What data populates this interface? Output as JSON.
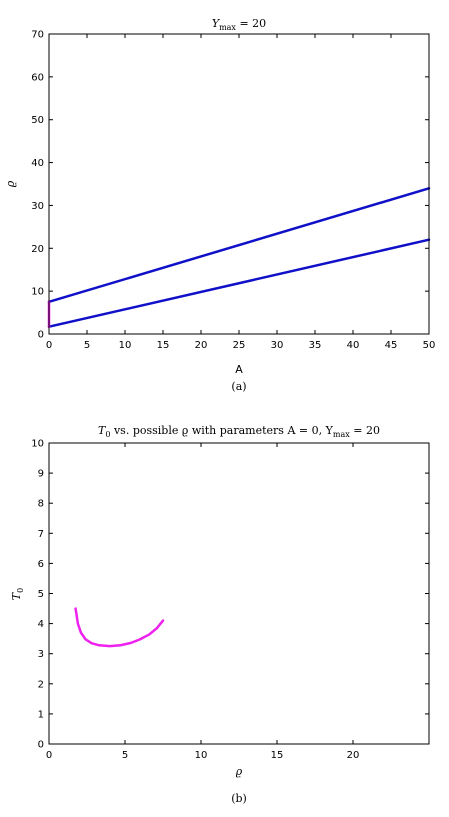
{
  "chart_data": [
    {
      "type": "line",
      "caption": "(a)",
      "title": {
        "main": "Y",
        "sub": "max",
        "rest": " = 20"
      },
      "xlabel": "A",
      "ylabel": "ϱ",
      "xlim": [
        0,
        50
      ],
      "ylim": [
        0,
        70
      ],
      "xticks": [
        0,
        5,
        10,
        15,
        20,
        25,
        30,
        35,
        40,
        45,
        50
      ],
      "yticks": [
        0,
        10,
        20,
        30,
        40,
        50,
        60,
        70
      ],
      "grid": false,
      "series": [
        {
          "color": "#1010c8",
          "x": [
            0,
            50
          ],
          "y": [
            7.5,
            34
          ]
        },
        {
          "color": "#1010c8",
          "x": [
            0,
            50
          ],
          "y": [
            1.7,
            22
          ]
        },
        {
          "color": "#ee22ee",
          "x": [
            0,
            0
          ],
          "y": [
            1.7,
            7.5
          ]
        }
      ]
    },
    {
      "type": "line",
      "caption": "(b)",
      "title": {
        "p1": "T",
        "s1": "0",
        "p2": " vs. possible ϱ with parameters A = 0,  Y",
        "s2": "max",
        "p3": " = 20"
      },
      "xlabel": "ϱ",
      "ylabel": {
        "main": "T",
        "sub": "0"
      },
      "xlim": [
        0,
        25
      ],
      "ylim": [
        0,
        10
      ],
      "xticks": [
        0,
        5,
        10,
        15,
        20
      ],
      "yticks": [
        0,
        1,
        2,
        3,
        4,
        5,
        6,
        7,
        8,
        9,
        10
      ],
      "grid": false,
      "series": [
        {
          "color": "#ee22ee",
          "x": [
            1.75,
            1.9,
            2.1,
            2.4,
            2.8,
            3.3,
            4.0,
            4.7,
            5.4,
            6.0,
            6.6,
            7.1,
            7.5
          ],
          "y": [
            4.5,
            4.0,
            3.7,
            3.48,
            3.35,
            3.28,
            3.25,
            3.28,
            3.36,
            3.48,
            3.64,
            3.85,
            4.1
          ]
        }
      ]
    }
  ]
}
